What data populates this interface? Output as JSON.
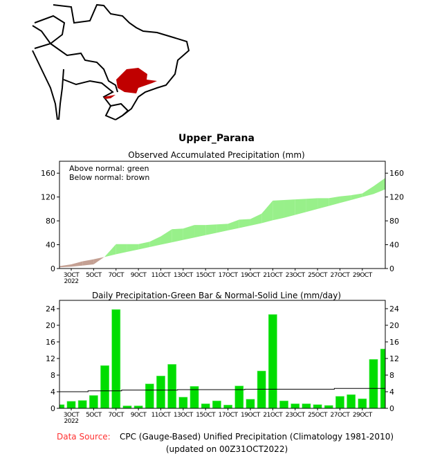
{
  "title": "Upper_Parana",
  "footer": {
    "source_label": "Data Source:",
    "source_text": "CPC (Gauge-Based) Unified Precipitation (Climatology 1981-2010)",
    "updated": "(updated on 00Z31OCT2022)"
  },
  "colors": {
    "above": "#98f08a",
    "below": "#c4a093",
    "bar": "#00dd00",
    "region": "#c00000",
    "source_label": "#ff3030"
  },
  "chart_data": [
    {
      "type": "area",
      "title": "Observed Accumulated Precipitation (mm)",
      "legend": [
        "Above normal: green",
        "Below normal: brown"
      ],
      "legend_placement": "top-left",
      "x": [
        2,
        3,
        4,
        5,
        6,
        7,
        8,
        9,
        10,
        11,
        12,
        13,
        14,
        15,
        16,
        17,
        18,
        19,
        20,
        21,
        22,
        23,
        24,
        25,
        26,
        27,
        28,
        29,
        30,
        31
      ],
      "observed": [
        2,
        3,
        5,
        7,
        20,
        41,
        41,
        41,
        45,
        54,
        66,
        67,
        73,
        73,
        74,
        75,
        82,
        83,
        92,
        114,
        115,
        116,
        117,
        118,
        118,
        121,
        123,
        126,
        138,
        152
      ],
      "normal": [
        4,
        7,
        12,
        15.5,
        19.5,
        24,
        28,
        32,
        36,
        40,
        44,
        48,
        52,
        56,
        60,
        64,
        68,
        72,
        76,
        81,
        85,
        90,
        95,
        100,
        105,
        110,
        115,
        120,
        125,
        133
      ],
      "ylim": [
        0,
        180
      ],
      "yticks": [
        "0",
        "40",
        "80",
        "120",
        "160"
      ],
      "xlim": [
        1.95,
        31.05
      ],
      "xtick_values": [
        3,
        5,
        7,
        9,
        11,
        13,
        15,
        17,
        19,
        21,
        23,
        25,
        27,
        29
      ],
      "xticks": [
        "3OCT",
        "5OCT",
        "7OCT",
        "9OCT",
        "11OCT",
        "13OCT",
        "15OCT",
        "17OCT",
        "19OCT",
        "21OCT",
        "23OCT",
        "25OCT",
        "27OCT",
        "29OCT"
      ],
      "year_label": "2022"
    },
    {
      "type": "bar",
      "title": "Daily Precipitation-Green Bar & Normal-Solid Line (mm/day)",
      "x": [
        2,
        3,
        4,
        5,
        6,
        7,
        8,
        9,
        10,
        11,
        12,
        13,
        14,
        15,
        16,
        17,
        18,
        19,
        20,
        21,
        22,
        23,
        24,
        25,
        26,
        27,
        28,
        29,
        30,
        31
      ],
      "values": [
        0.9,
        1.7,
        1.9,
        3.1,
        10.3,
        23.8,
        0.6,
        0.6,
        5.9,
        7.8,
        10.6,
        2.7,
        5.3,
        1.1,
        1.8,
        0.8,
        5.4,
        2.2,
        9.0,
        22.6,
        1.8,
        1.1,
        1.1,
        0.9,
        0.7,
        2.9,
        3.3,
        2.3,
        11.8,
        14.3
      ],
      "normal": [
        4.0,
        4.0,
        4.0,
        4.2,
        4.2,
        4.2,
        4.4,
        4.4,
        4.4,
        4.4,
        4.4,
        4.5,
        4.5,
        4.5,
        4.5,
        4.5,
        4.5,
        4.6,
        4.6,
        4.6,
        4.6,
        4.6,
        4.6,
        4.6,
        4.6,
        4.8,
        4.8,
        4.8,
        4.8,
        4.8
      ],
      "ylim": [
        0,
        26
      ],
      "yticks": [
        "0",
        "4",
        "8",
        "12",
        "16",
        "20",
        "24"
      ],
      "xlim": [
        1.95,
        31.05
      ],
      "xtick_values": [
        3,
        5,
        7,
        9,
        11,
        13,
        15,
        17,
        19,
        21,
        23,
        25,
        27,
        29
      ],
      "xticks": [
        "3OCT",
        "5OCT",
        "7OCT",
        "9OCT",
        "11OCT",
        "13OCT",
        "15OCT",
        "17OCT",
        "19OCT",
        "21OCT",
        "23OCT",
        "25OCT",
        "27OCT",
        "29OCT"
      ],
      "year_label": "2022"
    }
  ]
}
